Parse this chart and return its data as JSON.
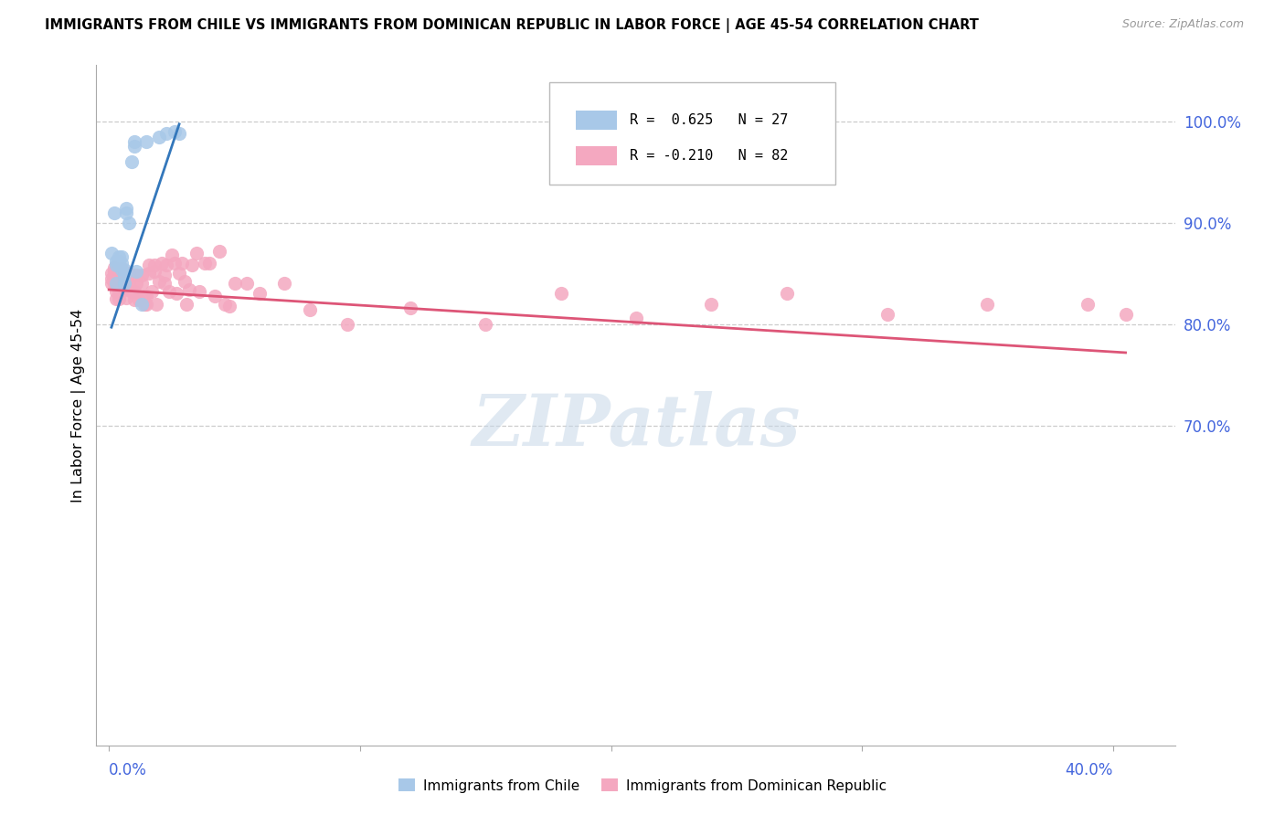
{
  "title": "IMMIGRANTS FROM CHILE VS IMMIGRANTS FROM DOMINICAN REPUBLIC IN LABOR FORCE | AGE 45-54 CORRELATION CHART",
  "source": "Source: ZipAtlas.com",
  "ylabel": "In Labor Force | Age 45-54",
  "legend_r1": "R =  0.625",
  "legend_n1": "N = 27",
  "legend_r2": "R = -0.210",
  "legend_n2": "N = 82",
  "color_chile": "#a8c8e8",
  "color_dr": "#f4a8c0",
  "color_chile_line": "#3377bb",
  "color_dr_line": "#dd5577",
  "color_blue_text": "#4466dd",
  "watermark": "ZIPatlas",
  "chile_x": [
    0.001,
    0.002,
    0.003,
    0.003,
    0.003,
    0.004,
    0.004,
    0.004,
    0.005,
    0.005,
    0.005,
    0.006,
    0.006,
    0.006,
    0.007,
    0.007,
    0.008,
    0.009,
    0.01,
    0.01,
    0.011,
    0.013,
    0.015,
    0.02,
    0.023,
    0.026,
    0.028
  ],
  "chile_y": [
    0.87,
    0.91,
    0.84,
    0.858,
    0.862,
    0.858,
    0.862,
    0.866,
    0.854,
    0.86,
    0.866,
    0.84,
    0.848,
    0.854,
    0.91,
    0.914,
    0.9,
    0.96,
    0.975,
    0.98,
    0.852,
    0.82,
    0.98,
    0.984,
    0.988,
    0.99,
    0.988
  ],
  "dr_x": [
    0.001,
    0.001,
    0.001,
    0.002,
    0.002,
    0.002,
    0.002,
    0.003,
    0.003,
    0.003,
    0.003,
    0.004,
    0.004,
    0.004,
    0.005,
    0.005,
    0.005,
    0.005,
    0.006,
    0.006,
    0.006,
    0.007,
    0.007,
    0.008,
    0.008,
    0.009,
    0.01,
    0.01,
    0.011,
    0.011,
    0.012,
    0.013,
    0.013,
    0.014,
    0.014,
    0.015,
    0.015,
    0.016,
    0.016,
    0.017,
    0.018,
    0.018,
    0.019,
    0.02,
    0.021,
    0.022,
    0.022,
    0.023,
    0.024,
    0.025,
    0.026,
    0.027,
    0.028,
    0.029,
    0.03,
    0.031,
    0.032,
    0.033,
    0.035,
    0.036,
    0.038,
    0.04,
    0.042,
    0.044,
    0.046,
    0.048,
    0.05,
    0.055,
    0.06,
    0.07,
    0.08,
    0.095,
    0.12,
    0.15,
    0.18,
    0.21,
    0.24,
    0.27,
    0.31,
    0.35,
    0.39,
    0.405
  ],
  "dr_y": [
    0.84,
    0.845,
    0.85,
    0.84,
    0.845,
    0.852,
    0.856,
    0.825,
    0.832,
    0.84,
    0.848,
    0.825,
    0.832,
    0.844,
    0.84,
    0.845,
    0.85,
    0.855,
    0.834,
    0.84,
    0.848,
    0.826,
    0.84,
    0.84,
    0.85,
    0.832,
    0.824,
    0.832,
    0.84,
    0.848,
    0.824,
    0.84,
    0.848,
    0.82,
    0.828,
    0.82,
    0.828,
    0.85,
    0.858,
    0.832,
    0.852,
    0.858,
    0.82,
    0.842,
    0.86,
    0.84,
    0.848,
    0.858,
    0.832,
    0.868,
    0.86,
    0.83,
    0.85,
    0.86,
    0.842,
    0.82,
    0.834,
    0.858,
    0.87,
    0.832,
    0.86,
    0.86,
    0.828,
    0.872,
    0.82,
    0.818,
    0.84,
    0.84,
    0.83,
    0.84,
    0.814,
    0.8,
    0.816,
    0.8,
    0.83,
    0.806,
    0.82,
    0.83,
    0.81,
    0.82,
    0.82,
    0.81
  ],
  "xlim": [
    -0.005,
    0.425
  ],
  "ylim": [
    0.385,
    1.055
  ],
  "ytick_vals": [
    0.7,
    0.8,
    0.9,
    1.0
  ],
  "ytick_labels": [
    "70.0%",
    "80.0%",
    "90.0%",
    "100.0%"
  ],
  "xtick_left_label": "0.0%",
  "xtick_right_label": "40.0%",
  "legend_chile_label": "Immigrants from Chile",
  "legend_dr_label": "Immigrants from Dominican Republic",
  "chile_line_x": [
    0.001,
    0.028
  ],
  "chile_line_y": [
    0.797,
    0.997
  ],
  "dr_line_x": [
    0.0,
    0.405
  ],
  "dr_line_y": [
    0.834,
    0.772
  ]
}
